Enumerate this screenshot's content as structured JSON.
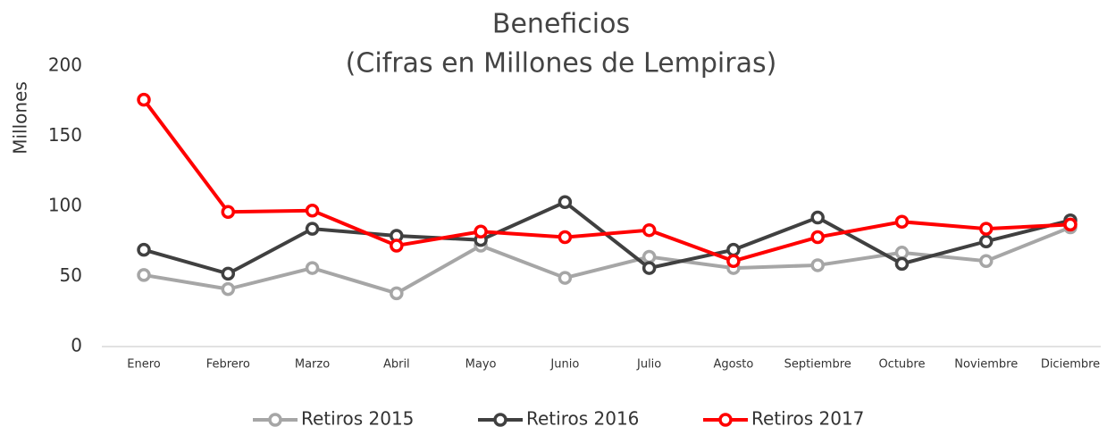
{
  "chart_data": {
    "type": "line",
    "title": [
      "Beneficios",
      "(Cifras en Millones de Lempiras)"
    ],
    "y_label": "Millones",
    "categories": [
      "Enero",
      "Febrero",
      "Marzo",
      "Abril",
      "Mayo",
      "Junio",
      "Julio",
      "Agosto",
      "Septiembre",
      "Octubre",
      "Noviembre",
      "Diciembre"
    ],
    "series": [
      {
        "name": "Retiros 2015",
        "color": "#a6a6a6",
        "values": [
          51,
          41,
          56,
          38,
          72,
          49,
          64,
          56,
          58,
          67,
          61,
          85
        ]
      },
      {
        "name": "Retiros 2016",
        "color": "#404040",
        "values": [
          69,
          52,
          84,
          79,
          76,
          103,
          56,
          69,
          92,
          59,
          75,
          90
        ]
      },
      {
        "name": "Retiros 2017",
        "color": "#ff0000",
        "values": [
          176,
          96,
          97,
          72,
          82,
          78,
          83,
          61,
          78,
          89,
          84,
          87
        ]
      }
    ],
    "ylim": [
      0,
      200
    ],
    "yticks": [
      0,
      50,
      100,
      150,
      200
    ],
    "grid": false,
    "legend": "bottom"
  }
}
